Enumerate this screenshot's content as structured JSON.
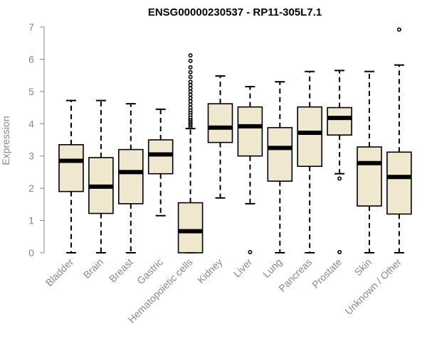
{
  "chart_data": {
    "type": "box",
    "title": "ENSG00000230537 - RP11-305L7.1",
    "xlabel": "",
    "ylabel": "Expression",
    "ylim": [
      0,
      7
    ],
    "yticks": [
      "0",
      "1",
      "2",
      "3",
      "4",
      "5",
      "6",
      "7"
    ],
    "grid": false,
    "box_fill": "#efe8cf",
    "categories": [
      "Bladder",
      "Brain",
      "Breast",
      "Gastric",
      "Hematopoietic cells",
      "Kidney",
      "Liver",
      "Lung",
      "Pancreas",
      "Prostate",
      "Skin",
      "Unknown / Other"
    ],
    "boxes": [
      {
        "whisker_low": 0.0,
        "q1": 1.9,
        "median": 2.85,
        "q3": 3.35,
        "whisker_high": 4.72,
        "outliers": []
      },
      {
        "whisker_low": 0.0,
        "q1": 1.22,
        "median": 2.05,
        "q3": 2.95,
        "whisker_high": 4.72,
        "outliers": []
      },
      {
        "whisker_low": 0.0,
        "q1": 1.52,
        "median": 2.5,
        "q3": 3.2,
        "whisker_high": 4.62,
        "outliers": []
      },
      {
        "whisker_low": 1.15,
        "q1": 2.45,
        "median": 3.05,
        "q3": 3.5,
        "whisker_high": 4.45,
        "outliers": []
      },
      {
        "whisker_low": 0.0,
        "q1": 0.0,
        "median": 0.67,
        "q3": 1.55,
        "whisker_high": 3.85,
        "outliers": [
          3.9,
          3.95,
          4.0,
          4.05,
          4.1,
          4.15,
          4.2,
          4.28,
          4.35,
          4.42,
          4.5,
          4.6,
          4.7,
          4.8,
          4.9,
          5.0,
          5.1,
          5.2,
          5.3,
          5.45,
          5.6,
          5.75,
          5.95,
          6.12
        ]
      },
      {
        "whisker_low": 1.7,
        "q1": 3.42,
        "median": 3.88,
        "q3": 4.62,
        "whisker_high": 5.48,
        "outliers": []
      },
      {
        "whisker_low": 1.52,
        "q1": 3.0,
        "median": 3.92,
        "q3": 4.52,
        "whisker_high": 5.15,
        "outliers": [
          0.02
        ]
      },
      {
        "whisker_low": 0.0,
        "q1": 2.22,
        "median": 3.25,
        "q3": 3.88,
        "whisker_high": 5.3,
        "outliers": []
      },
      {
        "whisker_low": 0.0,
        "q1": 2.68,
        "median": 3.72,
        "q3": 4.52,
        "whisker_high": 5.62,
        "outliers": []
      },
      {
        "whisker_low": 2.45,
        "q1": 3.65,
        "median": 4.18,
        "q3": 4.5,
        "whisker_high": 5.65,
        "outliers": [
          2.3,
          0.02
        ]
      },
      {
        "whisker_low": 0.0,
        "q1": 1.45,
        "median": 2.78,
        "q3": 3.28,
        "whisker_high": 5.62,
        "outliers": []
      },
      {
        "whisker_low": 0.0,
        "q1": 1.2,
        "median": 2.35,
        "q3": 3.12,
        "whisker_high": 5.82,
        "outliers": [
          6.92
        ]
      }
    ]
  }
}
